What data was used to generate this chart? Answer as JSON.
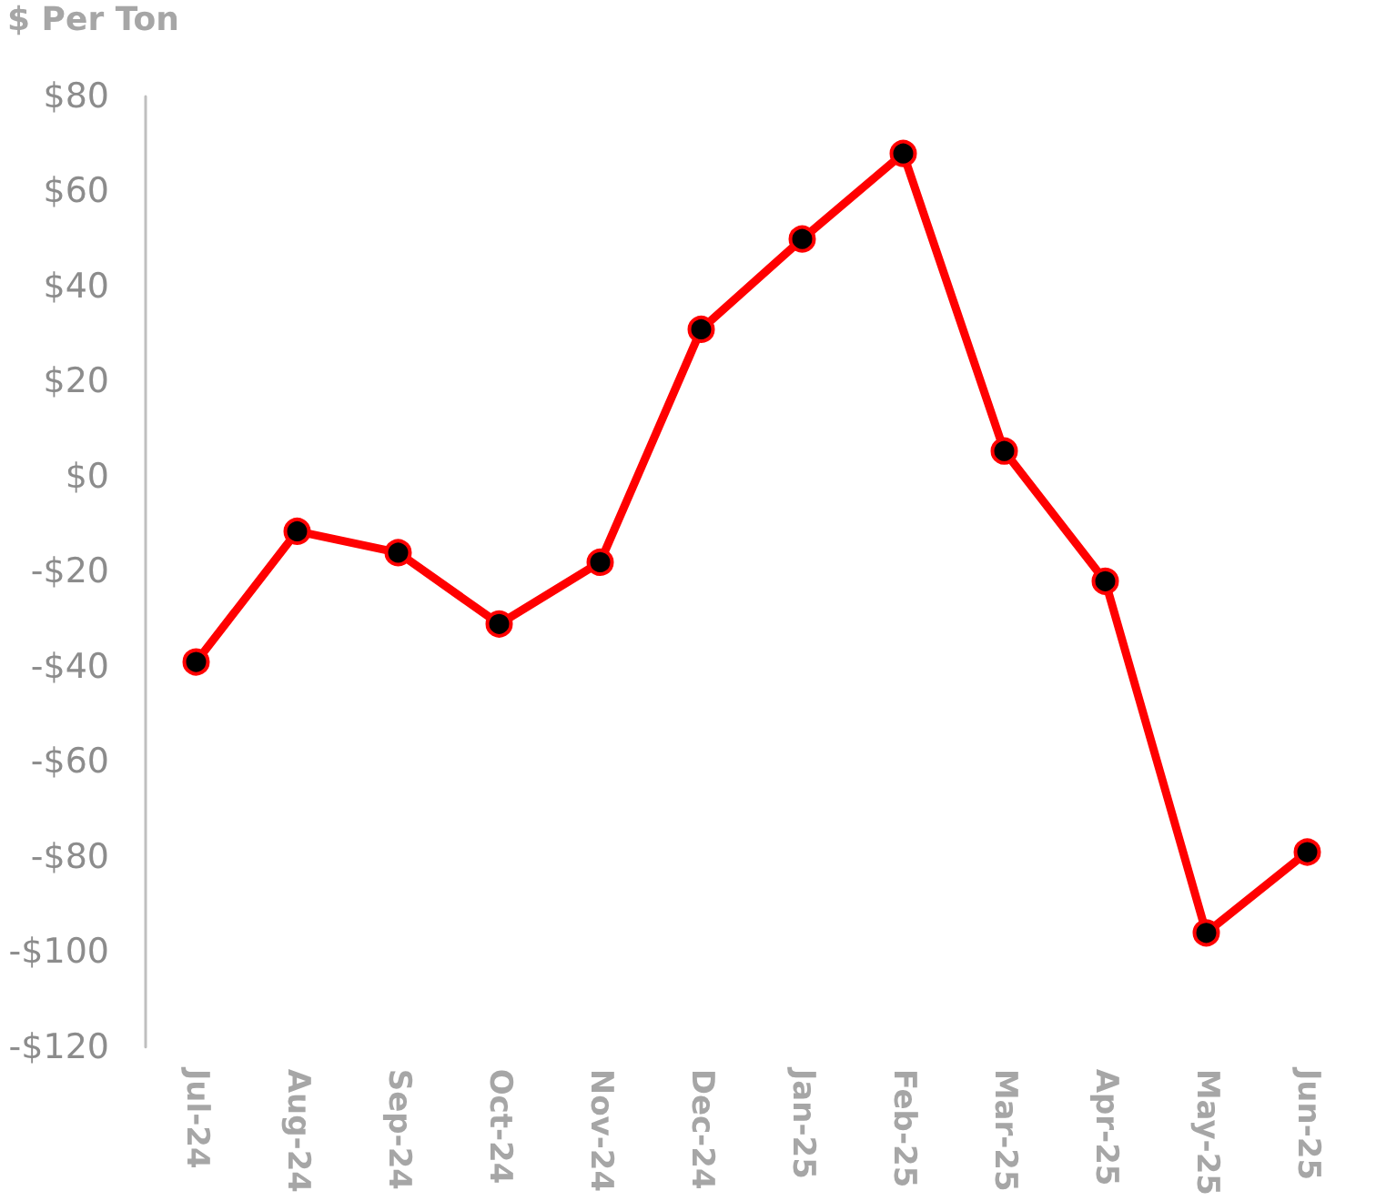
{
  "chart_data": {
    "type": "line",
    "ylabel": "$ Per Ton",
    "categories": [
      "Jul-24",
      "Aug-24",
      "Sep-24",
      "Oct-24",
      "Nov-24",
      "Dec-24",
      "Jan-25",
      "Feb-25",
      "Mar-25",
      "Apr-25",
      "May-25",
      "Jun-25"
    ],
    "series": [
      {
        "color": "#ff0000",
        "values": [
          -39,
          -11.5,
          -16,
          -31,
          -18,
          31,
          50,
          68,
          5.4,
          -22,
          -96,
          -79
        ]
      }
    ],
    "ylim": [
      -120,
      80
    ],
    "yticks": [
      {
        "value": -120,
        "label": "-$120"
      },
      {
        "value": -100,
        "label": "-$100"
      },
      {
        "value": -80,
        "label": "-$80"
      },
      {
        "value": -60,
        "label": "-$60"
      },
      {
        "value": -40,
        "label": "-$40"
      },
      {
        "value": -20,
        "label": "-$20"
      },
      {
        "value": 0,
        "label": "$0"
      },
      {
        "value": 20,
        "label": "$20"
      },
      {
        "value": 40,
        "label": "$40"
      },
      {
        "value": 60,
        "label": "$60"
      },
      {
        "value": 80,
        "label": "$80"
      }
    ],
    "grid": false,
    "marker": "circle",
    "line_style": "solid"
  }
}
